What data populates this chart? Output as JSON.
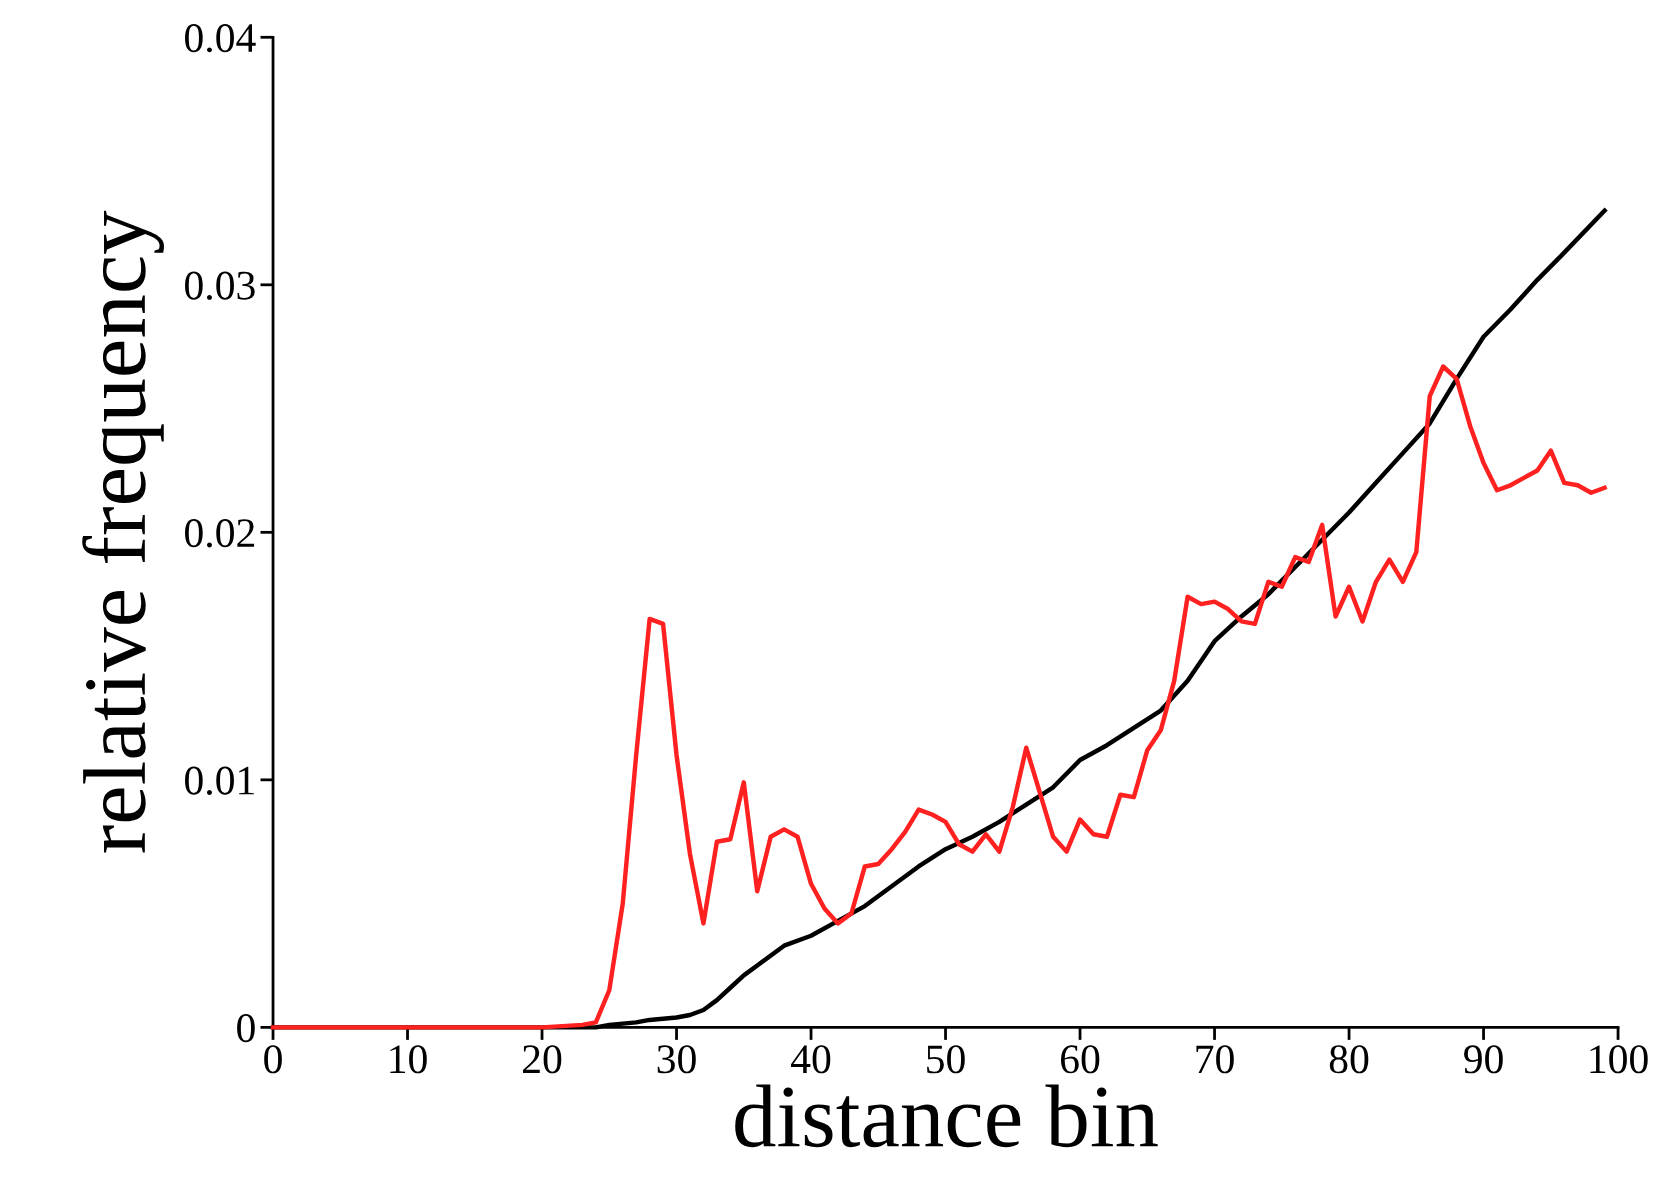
{
  "chart_data": {
    "type": "line",
    "xlabel": "distance bin",
    "ylabel": "relative frequency",
    "xlim": [
      0,
      100
    ],
    "ylim": [
      0,
      0.04
    ],
    "xticks": [
      0,
      10,
      20,
      30,
      40,
      50,
      60,
      70,
      80,
      90,
      100
    ],
    "yticks": [
      0,
      0.01,
      0.02,
      0.03,
      0.04
    ],
    "marker": "none",
    "line_style": "solid",
    "series": [
      {
        "color": "#000000",
        "x": [
          0,
          10,
          20,
          24,
          25,
          27,
          28,
          30,
          31,
          32,
          33,
          34,
          35,
          36,
          38,
          40,
          42,
          44,
          46,
          48,
          50,
          52,
          54,
          56,
          58,
          60,
          62,
          64,
          66,
          68,
          70,
          72,
          74,
          76,
          78,
          80,
          82,
          84,
          86,
          88,
          90,
          92,
          94,
          96,
          99
        ],
        "values": [
          0,
          0,
          0,
          0,
          0.0001,
          0.0002,
          0.0003,
          0.0004,
          0.0005,
          0.0007,
          0.0011,
          0.0016,
          0.0021,
          0.0025,
          0.0033,
          0.0037,
          0.0043,
          0.0049,
          0.0057,
          0.0065,
          0.0072,
          0.0077,
          0.0083,
          0.009,
          0.0097,
          0.0108,
          0.0114,
          0.0121,
          0.0128,
          0.014,
          0.0156,
          0.0166,
          0.0175,
          0.0186,
          0.0197,
          0.0208,
          0.022,
          0.0232,
          0.0244,
          0.0262,
          0.0279,
          0.029,
          0.0302,
          0.0313,
          0.033
        ]
      },
      {
        "color": "#ff2020",
        "x": [
          0,
          10,
          20,
          23,
          24,
          25,
          26,
          27,
          28,
          29,
          30,
          31,
          32,
          33,
          34,
          35,
          36,
          37,
          38,
          39,
          40,
          41,
          42,
          43,
          44,
          45,
          46,
          47,
          48,
          49,
          50,
          51,
          52,
          53,
          54,
          55,
          56,
          57,
          58,
          59,
          60,
          61,
          62,
          63,
          64,
          65,
          66,
          67,
          68,
          69,
          70,
          71,
          72,
          73,
          74,
          75,
          76,
          77,
          78,
          79,
          80,
          81,
          82,
          83,
          84,
          85,
          86,
          87,
          88,
          89,
          90,
          91,
          92,
          93,
          94,
          95,
          96,
          97,
          98,
          99
        ],
        "values": [
          0,
          0,
          0,
          0.0001,
          0.0002,
          0.0015,
          0.005,
          0.011,
          0.0165,
          0.0163,
          0.011,
          0.007,
          0.0042,
          0.0075,
          0.0076,
          0.0099,
          0.0055,
          0.0077,
          0.008,
          0.0077,
          0.0058,
          0.0048,
          0.0042,
          0.0046,
          0.0065,
          0.0066,
          0.0072,
          0.0079,
          0.0088,
          0.0086,
          0.0083,
          0.0074,
          0.0071,
          0.0078,
          0.0071,
          0.0089,
          0.0113,
          0.0095,
          0.0077,
          0.0071,
          0.0084,
          0.0078,
          0.0077,
          0.0094,
          0.0093,
          0.0112,
          0.012,
          0.014,
          0.0174,
          0.0171,
          0.0172,
          0.0169,
          0.0164,
          0.0163,
          0.018,
          0.0178,
          0.019,
          0.0188,
          0.0203,
          0.0166,
          0.0178,
          0.0164,
          0.018,
          0.0189,
          0.018,
          0.0192,
          0.0255,
          0.0267,
          0.0262,
          0.0243,
          0.0228,
          0.0217,
          0.0219,
          0.0222,
          0.0225,
          0.0233,
          0.022,
          0.0219,
          0.0216,
          0.0218
        ]
      }
    ]
  }
}
